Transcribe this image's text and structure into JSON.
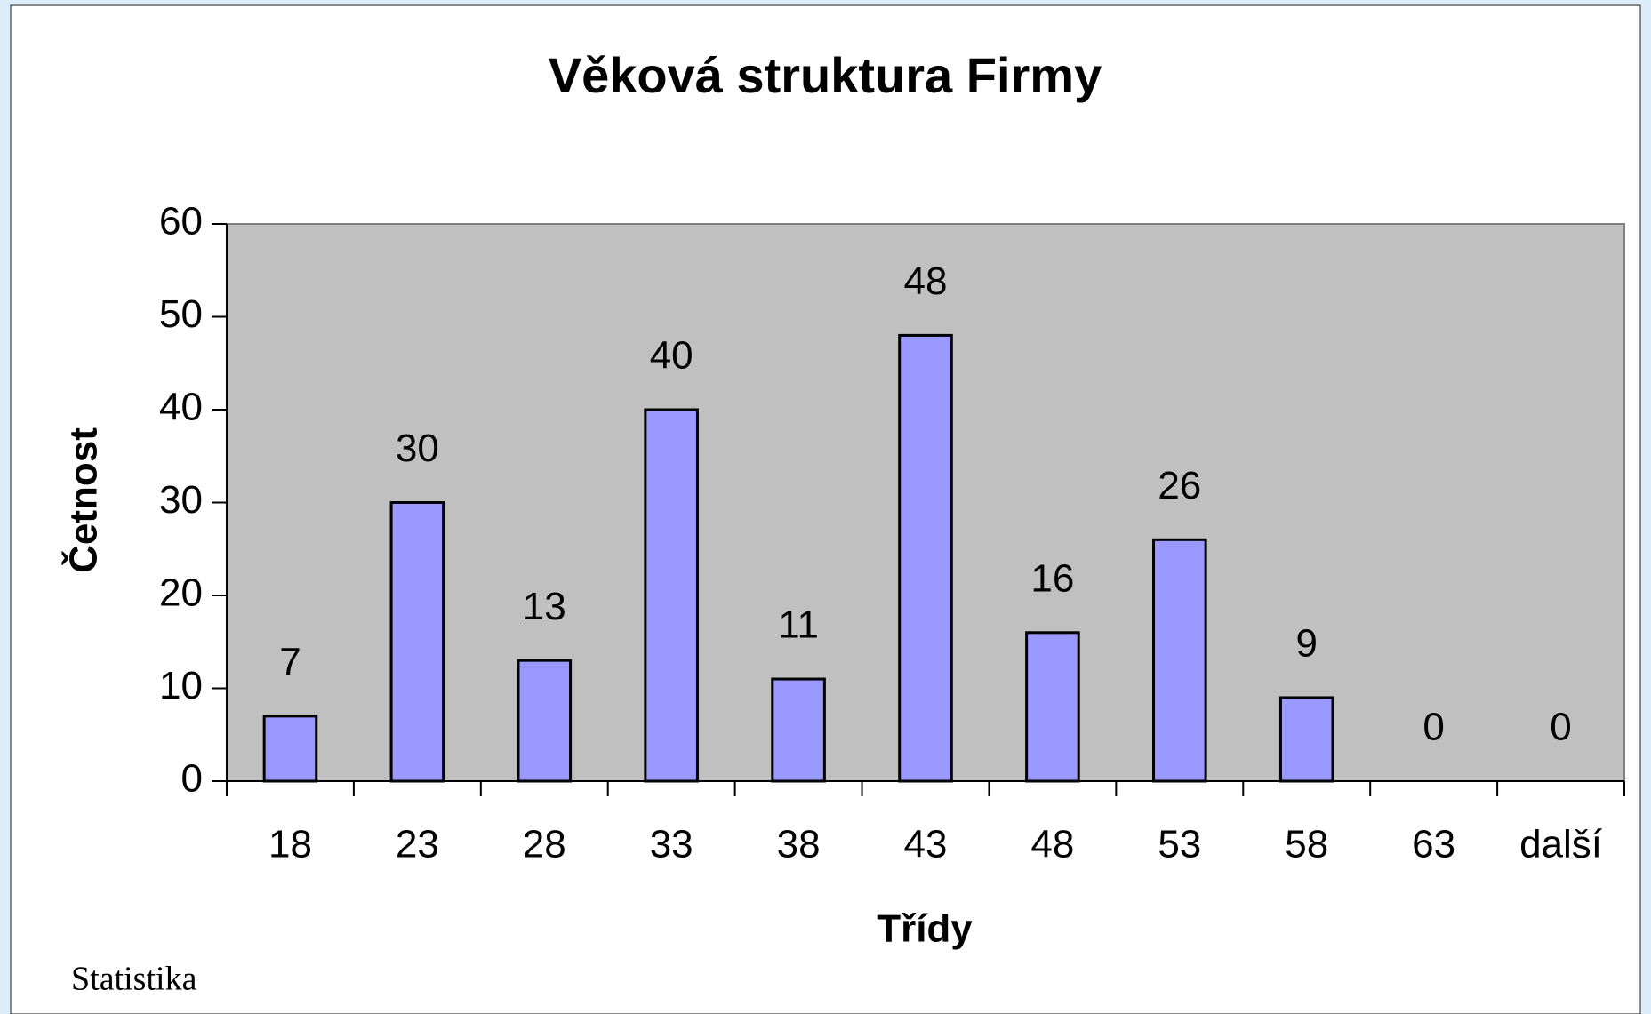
{
  "chart_data": {
    "type": "bar",
    "title": "Věková struktura Firmy",
    "x_label": "Třídy",
    "y_label": "Četnost",
    "categories": [
      "18",
      "23",
      "28",
      "33",
      "38",
      "43",
      "48",
      "53",
      "58",
      "63",
      "další"
    ],
    "values": [
      7,
      30,
      13,
      40,
      11,
      48,
      16,
      26,
      9,
      0,
      0
    ],
    "color": "#9999ff",
    "ylim": [
      0,
      60
    ],
    "yticks": [
      0,
      10,
      20,
      30,
      40,
      50,
      60
    ],
    "grid": false,
    "data_labels": true
  },
  "footer": "Statistika"
}
